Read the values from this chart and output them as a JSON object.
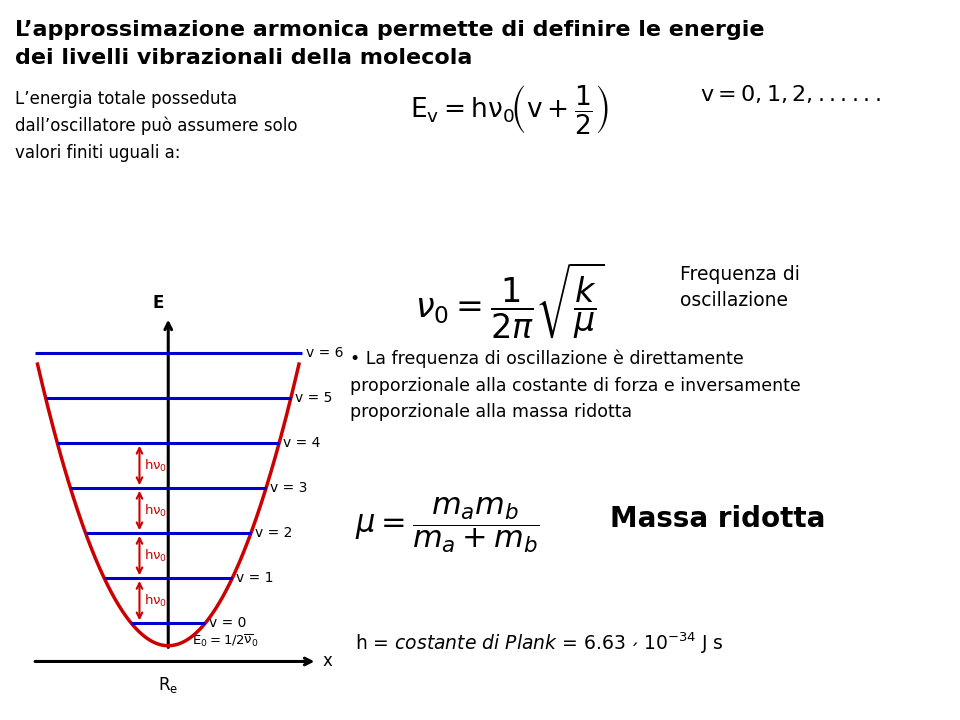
{
  "bg_color": "#ffffff",
  "title_line1": "L’approssimazione armonica permette di definire le energie",
  "title_line2": "dei livelli vibrazionali della molecola",
  "text_left": "L’energia totale posseduta\ndall’oscillatore può assumere solo\nvalori finiti uguali a:",
  "label_freq": "Frequenza di\noscillazione",
  "bullet_text": "• La frequenza di oscillazione è direttamente\nproporzionale alla costante di forza e inversamente\nproporzionale alla massa ridotta",
  "label_massa": "Massa ridotta",
  "parabola_color": "#cc0000",
  "level_color": "#0000cc",
  "axis_color": "#000000",
  "arrow_color": "#cc0000",
  "text_color": "#000000",
  "title_fontsize": 16,
  "body_fontsize": 13,
  "formula_fontsize_large": 22,
  "formula_fontsize_med": 18
}
